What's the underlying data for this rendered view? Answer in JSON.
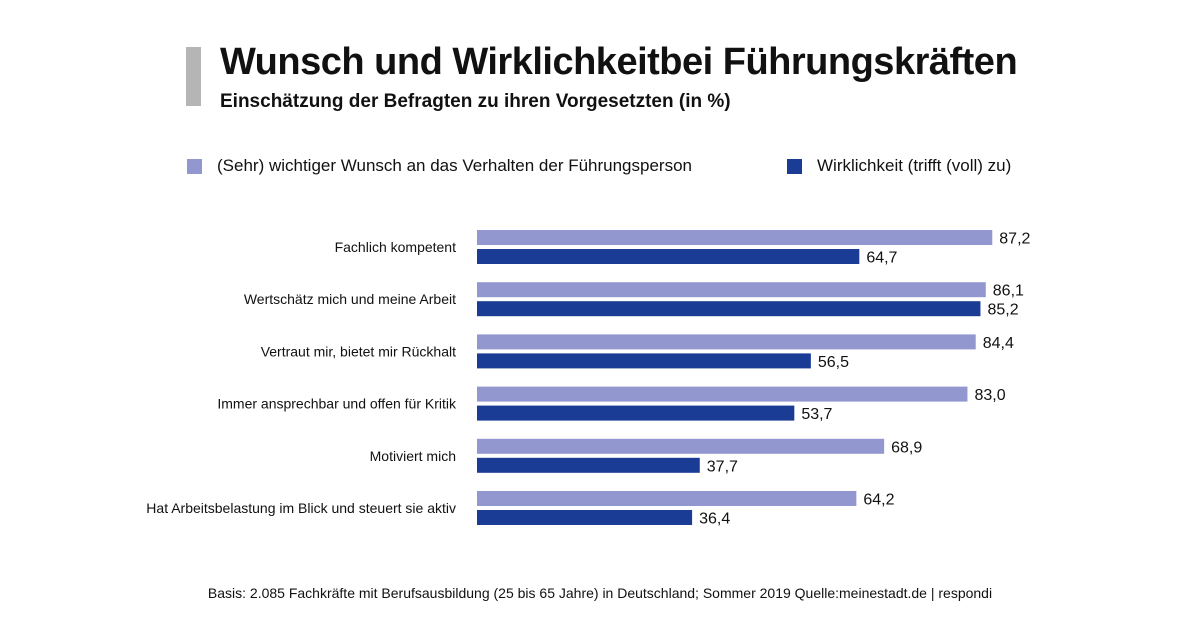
{
  "header": {
    "title": "Wunsch und Wirklichkeitbei Führungskräften",
    "subtitle": "Einschätzung der Befragten zu ihren Vorgesetzten (in %)"
  },
  "colors": {
    "wish": "#9297cf",
    "reality": "#1a3c94",
    "accent": "#b5b5b5"
  },
  "chart_data": {
    "type": "bar",
    "orientation": "horizontal",
    "title": "Wunsch und Wirklichkeitbei Führungskräften",
    "subtitle": "Einschätzung der Befragten zu ihren Vorgesetzten (in %)",
    "categories": [
      "Fachlich kompetent",
      "Wertschätz mich und meine Arbeit",
      "Vertraut mir, bietet mir Rückhalt",
      "Immer ansprechbar und offen für Kritik",
      "Motiviert mich",
      "Hat Arbeitsbelastung im Blick und steuert sie aktiv"
    ],
    "series": [
      {
        "name": "(Sehr) wichtiger Wunsch an das Verhalten der Führungsperson",
        "values": [
          87.2,
          86.1,
          84.4,
          83.0,
          68.9,
          64.2
        ],
        "labels": [
          "87,2",
          "86,1",
          "84,4",
          "83,0",
          "68,9",
          "64,2"
        ]
      },
      {
        "name": "Wirklichkeit (trifft (voll) zu)",
        "values": [
          64.7,
          85.2,
          56.5,
          53.7,
          37.7,
          36.4
        ],
        "labels": [
          "64,7",
          "85,2",
          "56,5",
          "53,7",
          "37,7",
          "36,4"
        ]
      }
    ],
    "xlim": [
      0,
      90
    ],
    "xlabel": "",
    "ylabel": "",
    "grid": false,
    "legend": "top"
  },
  "footer": {
    "note": "Basis: 2.085 Fachkräfte mit Berufsausbildung (25 bis 65 Jahre) in Deutschland; Sommer 2019 Quelle:meinestadt.de  | respondi"
  }
}
